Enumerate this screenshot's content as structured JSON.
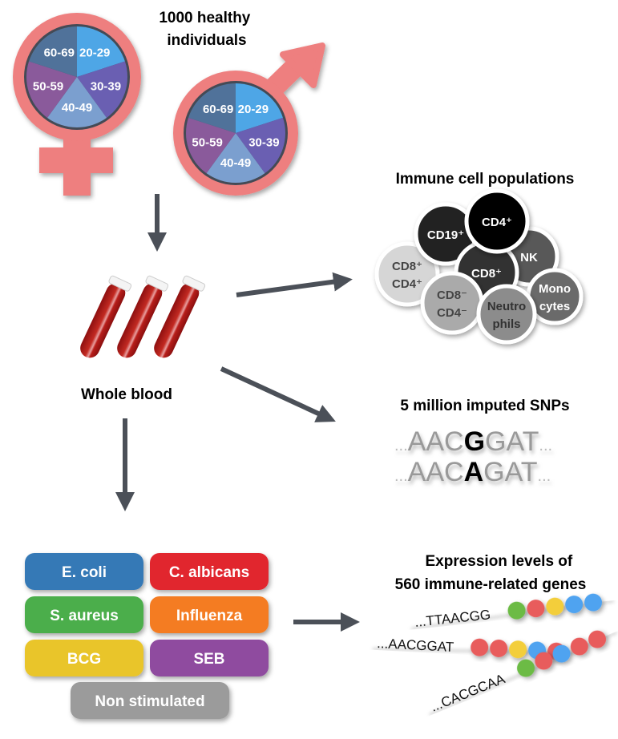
{
  "title": "1000 healthy individuals",
  "title_lines": [
    "1000 healthy",
    "individuals"
  ],
  "age_groups": [
    {
      "label": "20-29",
      "color": "#4ea6e6"
    },
    {
      "label": "30-39",
      "color": "#6a5fb2"
    },
    {
      "label": "40-49",
      "color": "#7b9fcf"
    },
    {
      "label": "50-59",
      "color": "#8a5a9b"
    },
    {
      "label": "60-69",
      "color": "#50729a"
    }
  ],
  "symbol_color": "#ee7f7f",
  "arrow_color": "#4b5058",
  "blood_label": "Whole blood",
  "immune": {
    "title": "Immune cell populations",
    "cells": [
      {
        "id": "cd8p-cd4p",
        "lines": [
          "CD8⁺",
          "CD4⁺"
        ],
        "fill": "#d6d6d6",
        "text": "#444"
      },
      {
        "id": "nk",
        "lines": [
          "NK"
        ],
        "fill": "#595959",
        "text": "#fff"
      },
      {
        "id": "cd19",
        "lines": [
          "CD19⁺"
        ],
        "fill": "#222222",
        "text": "#fff"
      },
      {
        "id": "cd8",
        "lines": [
          "CD8⁺"
        ],
        "fill": "#333333",
        "text": "#fff"
      },
      {
        "id": "cd4",
        "lines": [
          "CD4⁺"
        ],
        "fill": "#000000",
        "text": "#fff"
      },
      {
        "id": "cd8m-cd4m",
        "lines": [
          "CD8⁻",
          "CD4⁻"
        ],
        "fill": "#aaaaaa",
        "text": "#444"
      },
      {
        "id": "monocytes",
        "lines": [
          "Mono",
          "cytes"
        ],
        "fill": "#6a6a6a",
        "text": "#fff"
      },
      {
        "id": "neutrophils",
        "lines": [
          "Neutro",
          "phils"
        ],
        "fill": "#8c8c8c",
        "text": "#333"
      }
    ]
  },
  "snps": {
    "title": "5 million imputed SNPs",
    "rows": [
      {
        "prefix": "...",
        "left": "AAC",
        "variant": "G",
        "right": "GAT",
        "suffix": "..."
      },
      {
        "prefix": "...",
        "left": "AAC",
        "variant": "A",
        "right": "GAT",
        "suffix": "..."
      }
    ]
  },
  "stimuli": [
    {
      "label": "E. coli",
      "color": "#3579b6"
    },
    {
      "label": "C. albicans",
      "color": "#e1272f"
    },
    {
      "label": "S. aureus",
      "color": "#4cae4b"
    },
    {
      "label": "Influenza",
      "color": "#f47c20"
    },
    {
      "label": "BCG",
      "color": "#e9c52b"
    },
    {
      "label": "SEB",
      "color": "#8f4b9f"
    },
    {
      "label": "Non stimulated",
      "color": "#9b9b9b"
    }
  ],
  "expression": {
    "title_lines": [
      "Expression levels of",
      "560 immune-related genes"
    ],
    "bead_colors": {
      "green": "#6cbb45",
      "red": "#e85c5c",
      "yellow": "#f3ce3a",
      "blue": "#4fa3f0"
    },
    "rows": [
      {
        "sequence": "...TTAACGG",
        "beads": [
          "green",
          "red",
          "yellow",
          "blue",
          "blue"
        ]
      },
      {
        "sequence": "...AACGGAT",
        "beads": [
          "red",
          "red",
          "yellow",
          "blue",
          "red"
        ]
      },
      {
        "sequence": "...CACGCAA",
        "beads": [
          "green",
          "red",
          "blue",
          "red",
          "red"
        ]
      }
    ]
  }
}
